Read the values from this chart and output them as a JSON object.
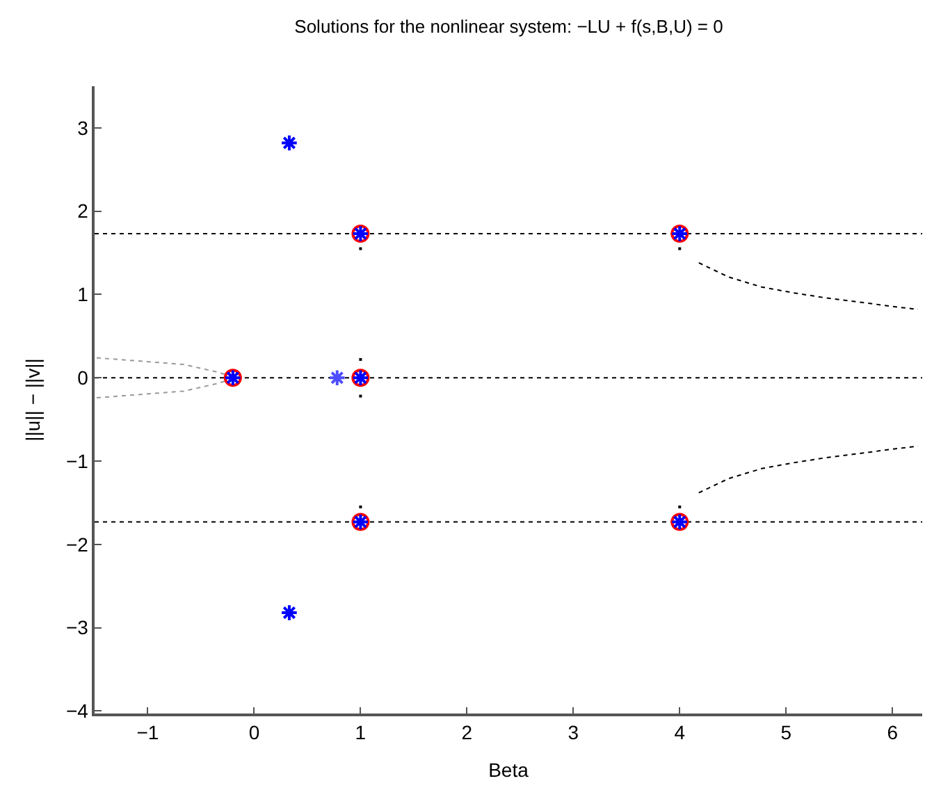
{
  "chart_data": {
    "type": "scatter",
    "title": "Solutions for the nonlinear system: −LU + f(s,B,U) = 0",
    "xlabel": "Beta",
    "ylabel": "||u|| − ||v||",
    "xlim": [
      -1.5,
      6.28
    ],
    "xticks": [
      -1,
      0,
      1,
      2,
      3,
      4,
      5,
      6
    ],
    "ylim": [
      -4.03,
      3.5
    ],
    "yticks": [
      -4,
      -3,
      -2,
      -1,
      0,
      1,
      2,
      3
    ],
    "series": [
      {
        "type": "line",
        "line_style": "dotted",
        "marker": "none",
        "color": "#000000",
        "x": [
          -1.5,
          6.28
        ],
        "values": [
          1.73,
          1.73
        ]
      },
      {
        "type": "line",
        "line_style": "dotted",
        "marker": "none",
        "color": "#000000",
        "x": [
          -1.5,
          6.28
        ],
        "values": [
          0,
          0
        ]
      },
      {
        "type": "line",
        "line_style": "dotted",
        "marker": "none",
        "color": "#000000",
        "x": [
          -1.5,
          6.28
        ],
        "values": [
          -1.73,
          -1.73
        ]
      },
      {
        "type": "line",
        "line_style": "dotted",
        "marker": "none",
        "color": "#000000",
        "x": [
          4.18,
          4.46,
          4.77,
          5.07,
          5.37,
          5.68,
          5.98,
          6.24
        ],
        "values": [
          1.38,
          1.21,
          1.09,
          1.02,
          0.96,
          0.91,
          0.86,
          0.82
        ]
      },
      {
        "type": "line",
        "line_style": "dotted",
        "marker": "none",
        "color": "#000000",
        "x": [
          4.18,
          4.46,
          4.77,
          5.07,
          5.37,
          5.68,
          5.98,
          6.24
        ],
        "values": [
          -1.38,
          -1.21,
          -1.09,
          -1.02,
          -0.96,
          -0.91,
          -0.86,
          -0.82
        ]
      },
      {
        "type": "line",
        "line_style": "dotted",
        "marker": "none",
        "color": "#999999",
        "x": [
          -1.48,
          -0.66,
          -0.35,
          -0.22
        ],
        "values": [
          0.24,
          0.16,
          0.07,
          0.02
        ]
      },
      {
        "type": "line",
        "line_style": "dotted",
        "marker": "none",
        "color": "#999999",
        "x": [
          -1.48,
          -0.66,
          -0.35,
          -0.22
        ],
        "values": [
          -0.24,
          -0.16,
          -0.07,
          -0.02
        ]
      },
      {
        "marker": "square",
        "color": "#000000",
        "x": [
          1,
          1,
          1,
          1,
          4,
          4
        ],
        "values": [
          0.22,
          -0.22,
          1.55,
          -1.55,
          1.55,
          -1.55
        ]
      },
      {
        "marker": "circle",
        "color": "#ff0000",
        "x": [
          -0.2,
          1,
          1,
          1,
          4,
          4
        ],
        "values": [
          0,
          1.73,
          0,
          -1.73,
          1.73,
          -1.73
        ]
      },
      {
        "marker": "cross",
        "color": "#0000ff",
        "x": [
          -0.2,
          1,
          1,
          1,
          4,
          4,
          0.33,
          0.33
        ],
        "values": [
          0,
          1.73,
          0,
          -1.73,
          1.73,
          -1.73,
          2.82,
          -2.82
        ]
      },
      {
        "marker": "cross",
        "color": "#4d4dff",
        "x": [
          0.78
        ],
        "values": [
          0
        ]
      }
    ]
  }
}
